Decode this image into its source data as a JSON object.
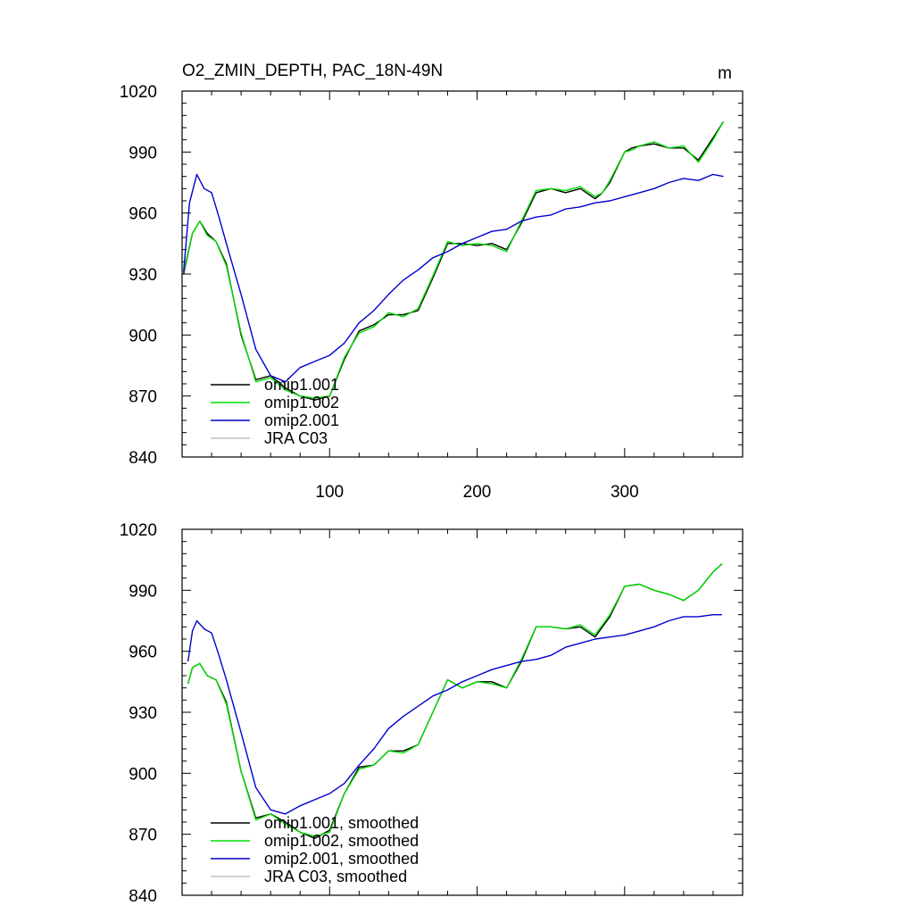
{
  "figure": {
    "title": "O2_ZMIN_DEPTH, PAC_18N-49N",
    "units": "m"
  },
  "chart_data": [
    {
      "type": "line",
      "title": "O2_ZMIN_DEPTH, PAC_18N-49N",
      "units": "m",
      "xlim": [
        0,
        380
      ],
      "ylim": [
        840,
        1020
      ],
      "xticks": [
        100,
        200,
        300
      ],
      "yticks": [
        840,
        870,
        900,
        930,
        960,
        990,
        1020
      ],
      "show_xtick_labels": true,
      "grid": false,
      "legend_placement": "bottom-left",
      "series": [
        {
          "name": "omip1.001",
          "color": "#000000",
          "x": [
            1,
            7,
            12,
            17,
            23,
            30,
            40,
            50,
            60,
            70,
            80,
            90,
            100,
            110,
            120,
            130,
            140,
            150,
            160,
            170,
            180,
            190,
            200,
            210,
            220,
            230,
            240,
            250,
            260,
            270,
            280,
            285,
            290,
            300,
            305,
            310,
            320,
            330,
            340,
            350,
            360,
            367
          ],
          "y": [
            930,
            950,
            956,
            950,
            946,
            935,
            900,
            878,
            880,
            874,
            870,
            868,
            870,
            888,
            902,
            905,
            910,
            910,
            912,
            928,
            945,
            945,
            944,
            945,
            942,
            955,
            970,
            972,
            970,
            972,
            967,
            970,
            975,
            990,
            992,
            993,
            994,
            992,
            992,
            986,
            997,
            1005
          ]
        },
        {
          "name": "omip1.002",
          "color": "#00dd00",
          "x": [
            1,
            7,
            12,
            17,
            23,
            30,
            40,
            50,
            60,
            70,
            80,
            90,
            100,
            110,
            120,
            130,
            140,
            150,
            160,
            170,
            180,
            190,
            200,
            210,
            220,
            230,
            240,
            250,
            260,
            270,
            280,
            285,
            290,
            300,
            305,
            310,
            320,
            330,
            340,
            350,
            360,
            367
          ],
          "y": [
            931,
            950,
            956,
            949,
            946,
            934,
            901,
            877,
            879,
            873,
            870,
            869,
            870,
            889,
            901,
            904,
            911,
            909,
            913,
            929,
            946,
            944,
            945,
            944,
            941,
            956,
            971,
            972,
            971,
            973,
            968,
            970,
            976,
            990,
            991,
            993,
            995,
            992,
            993,
            985,
            996,
            1005
          ]
        },
        {
          "name": "omip2.001",
          "color": "#0000cc",
          "x": [
            1,
            5,
            10,
            15,
            20,
            25,
            30,
            40,
            50,
            60,
            70,
            80,
            90,
            100,
            110,
            120,
            130,
            140,
            150,
            160,
            170,
            180,
            190,
            200,
            210,
            220,
            230,
            240,
            250,
            260,
            270,
            280,
            290,
            300,
            310,
            320,
            330,
            340,
            350,
            360,
            367
          ],
          "y": [
            931,
            965,
            979,
            972,
            970,
            958,
            945,
            920,
            893,
            880,
            877,
            884,
            887,
            890,
            896,
            906,
            912,
            920,
            927,
            932,
            938,
            941,
            945,
            948,
            951,
            952,
            956,
            958,
            959,
            962,
            963,
            965,
            966,
            968,
            970,
            972,
            975,
            977,
            976,
            979,
            978
          ]
        },
        {
          "name": "JRA C03",
          "color": "#c0c0c0",
          "x": [],
          "y": []
        }
      ]
    },
    {
      "type": "line",
      "xlim": [
        0,
        380
      ],
      "ylim": [
        840,
        1020
      ],
      "xticks": [
        100,
        200,
        300
      ],
      "yticks": [
        840,
        870,
        900,
        930,
        960,
        990,
        1020
      ],
      "show_xtick_labels": false,
      "grid": false,
      "legend_placement": "bottom-left",
      "series": [
        {
          "name": "omip1.001, smoothed",
          "color": "#000000",
          "x": [
            4,
            7,
            12,
            17,
            23,
            30,
            40,
            50,
            60,
            70,
            80,
            90,
            100,
            110,
            120,
            130,
            140,
            150,
            160,
            170,
            180,
            190,
            200,
            210,
            220,
            230,
            240,
            250,
            260,
            270,
            280,
            290,
            300,
            310,
            320,
            330,
            340,
            350,
            360,
            366
          ],
          "y": [
            944,
            952,
            954,
            948,
            946,
            935,
            901,
            878,
            880,
            876,
            871,
            868,
            872,
            890,
            903,
            904,
            911,
            911,
            914,
            930,
            946,
            942,
            945,
            945,
            942,
            955,
            972,
            972,
            971,
            972,
            967,
            977,
            992,
            993,
            990,
            988,
            985,
            990,
            999,
            1003
          ]
        },
        {
          "name": "omip1.002, smoothed",
          "color": "#00dd00",
          "x": [
            4,
            7,
            12,
            17,
            23,
            30,
            40,
            50,
            60,
            70,
            80,
            90,
            100,
            110,
            120,
            130,
            140,
            150,
            160,
            170,
            180,
            190,
            200,
            210,
            220,
            230,
            240,
            250,
            260,
            270,
            280,
            290,
            300,
            310,
            320,
            330,
            340,
            350,
            360,
            366
          ],
          "y": [
            944,
            952,
            954,
            948,
            946,
            934,
            901,
            877,
            880,
            875,
            871,
            869,
            871,
            890,
            902,
            904,
            911,
            910,
            914,
            930,
            946,
            942,
            945,
            944,
            942,
            956,
            972,
            972,
            971,
            973,
            968,
            978,
            992,
            993,
            990,
            988,
            985,
            990,
            999,
            1003
          ]
        },
        {
          "name": "omip2.001, smoothed",
          "color": "#0000cc",
          "x": [
            4,
            7,
            10,
            15,
            20,
            25,
            30,
            40,
            50,
            60,
            70,
            80,
            90,
            100,
            110,
            120,
            130,
            140,
            150,
            160,
            170,
            180,
            190,
            200,
            210,
            220,
            230,
            240,
            250,
            260,
            270,
            280,
            290,
            300,
            310,
            320,
            330,
            340,
            350,
            360,
            366
          ],
          "y": [
            955,
            970,
            975,
            971,
            969,
            958,
            946,
            920,
            893,
            882,
            880,
            884,
            887,
            890,
            895,
            904,
            912,
            922,
            928,
            933,
            938,
            941,
            945,
            948,
            951,
            953,
            955,
            956,
            958,
            962,
            964,
            966,
            967,
            968,
            970,
            972,
            975,
            977,
            977,
            978,
            978
          ]
        },
        {
          "name": "JRA C03, smoothed",
          "color": "#c0c0c0",
          "x": [],
          "y": []
        }
      ]
    }
  ]
}
